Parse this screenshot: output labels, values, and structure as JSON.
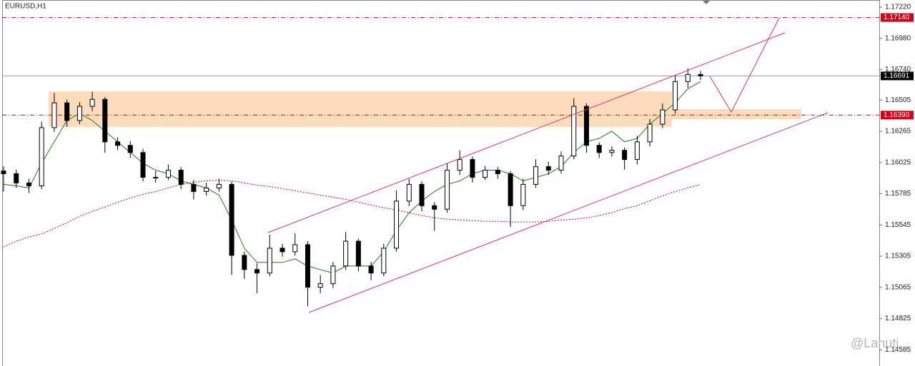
{
  "chart_data": {
    "type": "candlestick",
    "title": "EURUSD,H1",
    "watermark": "@Lanuti",
    "ylim": [
      1.1446,
      1.17275
    ],
    "yticks": [
      {
        "value": 1.1722,
        "label": "1.17220"
      },
      {
        "value": 1.1698,
        "label": "1.16980"
      },
      {
        "value": 1.1674,
        "label": "1.16740"
      },
      {
        "value": 1.16505,
        "label": "1.16505"
      },
      {
        "value": 1.16265,
        "label": "1.16265"
      },
      {
        "value": 1.16025,
        "label": "1.16025"
      },
      {
        "value": 1.15785,
        "label": "1.15785"
      },
      {
        "value": 1.15545,
        "label": "1.15545"
      },
      {
        "value": 1.15305,
        "label": "1.15305"
      },
      {
        "value": 1.15065,
        "label": "1.15065"
      },
      {
        "value": 1.14825,
        "label": "1.14825"
      },
      {
        "value": 1.14585,
        "label": "1.14585"
      }
    ],
    "price_lines": [
      {
        "value": 1.1714,
        "label": "1.17140",
        "color": "#d0021b",
        "style": "dashdot"
      },
      {
        "value": 1.16691,
        "label": "1.16691",
        "color": "#000000",
        "style": "solid"
      },
      {
        "value": 1.1639,
        "label": "1.16390",
        "color": "#d0021b",
        "style": "dashdot"
      }
    ],
    "candle_color": "#000000",
    "open": [
      1.1596,
      1.15939,
      1.15868,
      1.15846,
      1.16293,
      1.16484,
      1.16348,
      1.16457,
      1.16511,
      1.16184,
      1.16157,
      1.16102,
      1.15911,
      1.15911,
      1.15966,
      1.15857,
      1.15802,
      1.15829,
      1.15857,
      1.15311,
      1.15202,
      1.15175,
      1.15366,
      1.15339,
      1.15393,
      1.15066,
      1.15093,
      1.15229,
      1.1542,
      1.15229,
      1.15175,
      1.15366,
      1.15728,
      1.15857,
      1.15693,
      1.15666,
      1.15966,
      1.16048,
      1.15911,
      1.15966,
      1.15939,
      1.15693,
      1.15857,
      1.15993,
      1.15966,
      1.16075,
      1.16457,
      1.16157,
      1.16102,
      1.16119,
      1.16048,
      1.16184,
      1.1632,
      1.1643,
      1.16648,
      1.16702
    ],
    "high": [
      1.15995,
      1.1597,
      1.159,
      1.1634,
      1.1656,
      1.1651,
      1.1649,
      1.1657,
      1.1653,
      1.1622,
      1.1619,
      1.1613,
      1.1596,
      1.1601,
      1.1599,
      1.1589,
      1.1587,
      1.159,
      1.1588,
      1.1534,
      1.1525,
      1.1547,
      1.154,
      1.1548,
      1.1542,
      1.1516,
      1.1526,
      1.1549,
      1.1544,
      1.1526,
      1.154,
      1.1581,
      1.159,
      1.1588,
      1.1572,
      1.1602,
      1.1612,
      1.1607,
      1.16,
      1.1599,
      1.1596,
      1.159,
      1.1605,
      1.1603,
      1.1611,
      1.1652,
      1.1648,
      1.1618,
      1.1615,
      1.1614,
      1.1623,
      1.1636,
      1.1648,
      1.167,
      1.1675,
      1.1673
    ],
    "low": [
      1.158,
      1.1583,
      1.1579,
      1.1582,
      1.1626,
      1.163,
      1.1632,
      1.1642,
      1.161,
      1.1612,
      1.1606,
      1.1588,
      1.1587,
      1.1589,
      1.1582,
      1.1574,
      1.1577,
      1.158,
      1.1516,
      1.1513,
      1.1502,
      1.1515,
      1.153,
      1.1531,
      1.1492,
      1.1502,
      1.1506,
      1.152,
      1.1519,
      1.1512,
      1.1515,
      1.1534,
      1.1569,
      1.1565,
      1.155,
      1.1564,
      1.1593,
      1.1587,
      1.1589,
      1.159,
      1.1553,
      1.1566,
      1.1583,
      1.1593,
      1.1594,
      1.1605,
      1.161,
      1.1606,
      1.1607,
      1.1597,
      1.1601,
      1.1615,
      1.1629,
      1.164,
      1.166,
      1.1666
    ],
    "close": [
      1.15939,
      1.15868,
      1.15846,
      1.16293,
      1.16484,
      1.16348,
      1.16457,
      1.16511,
      1.16184,
      1.16157,
      1.16102,
      1.15911,
      1.15911,
      1.15966,
      1.15857,
      1.15802,
      1.15829,
      1.15857,
      1.15311,
      1.15202,
      1.15175,
      1.15366,
      1.15339,
      1.15393,
      1.15066,
      1.15093,
      1.15229,
      1.1542,
      1.15229,
      1.15175,
      1.15366,
      1.15728,
      1.15857,
      1.15693,
      1.15666,
      1.15966,
      1.16048,
      1.15911,
      1.15966,
      1.15939,
      1.15693,
      1.15857,
      1.15993,
      1.15966,
      1.16075,
      1.16457,
      1.16157,
      1.16102,
      1.16119,
      1.16048,
      1.16184,
      1.1632,
      1.1643,
      1.16648,
      1.16702,
      1.16691
    ],
    "overlays": [
      {
        "color": "#1b7a1b",
        "style": "solid",
        "values": [
          1.15857,
          1.15846,
          1.15829,
          1.1602,
          1.16184,
          1.16348,
          1.16402,
          1.16348,
          1.16266,
          1.16184,
          1.16102,
          1.1602,
          1.15966,
          1.15939,
          1.15884,
          1.15857,
          1.15829,
          1.15775,
          1.15584,
          1.15366,
          1.15257,
          1.15257,
          1.15257,
          1.15284,
          1.15229,
          1.15202,
          1.15175,
          1.15229,
          1.15229,
          1.15229,
          1.15339,
          1.15502,
          1.15639,
          1.15728,
          1.15802,
          1.15857,
          1.15884,
          1.15939,
          1.15966,
          1.15966,
          1.15939,
          1.15884,
          1.15911,
          1.15939,
          1.15993,
          1.16102,
          1.16184,
          1.16211,
          1.16266,
          1.16184,
          1.16211,
          1.1632,
          1.16402,
          1.16484,
          1.16593,
          1.16648
        ]
      },
      {
        "color": "#d0021b",
        "style": "dotted",
        "values": [
          1.15377,
          1.1542,
          1.15453,
          1.15475,
          1.15518,
          1.15562,
          1.15611,
          1.15649,
          1.15682,
          1.1572,
          1.15753,
          1.1578,
          1.15802,
          1.15829,
          1.15857,
          1.15873,
          1.15884,
          1.15889,
          1.15884,
          1.15868,
          1.15851,
          1.1584,
          1.15824,
          1.15808,
          1.15791,
          1.15775,
          1.15758,
          1.15742,
          1.1572,
          1.15698,
          1.15677,
          1.1566,
          1.15639,
          1.15617,
          1.156,
          1.15589,
          1.15584,
          1.15578,
          1.15573,
          1.15573,
          1.15568,
          1.15568,
          1.15568,
          1.15573,
          1.15584,
          1.15589,
          1.156,
          1.15617,
          1.15639,
          1.15671,
          1.15693,
          1.15731,
          1.15769,
          1.15802,
          1.15829,
          1.15857
        ]
      }
    ]
  }
}
